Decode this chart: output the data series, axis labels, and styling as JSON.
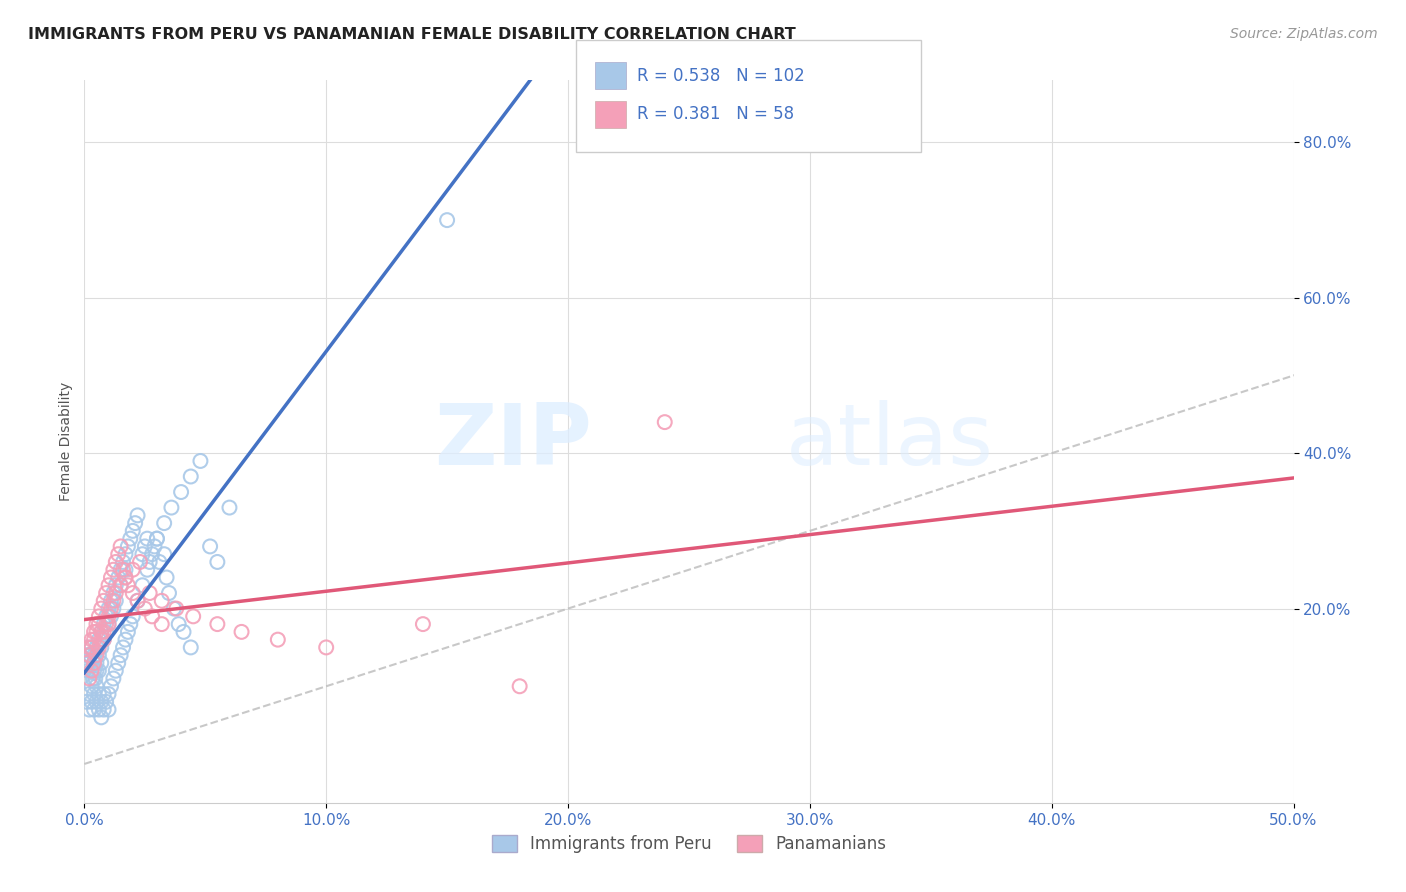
{
  "title": "IMMIGRANTS FROM PERU VS PANAMANIAN FEMALE DISABILITY CORRELATION CHART",
  "source": "Source: ZipAtlas.com",
  "ylabel": "Female Disability",
  "x_tick_labels": [
    "0.0%",
    "10.0%",
    "20.0%",
    "30.0%",
    "40.0%",
    "50.0%"
  ],
  "x_tick_vals": [
    0.0,
    0.1,
    0.2,
    0.3,
    0.4,
    0.5
  ],
  "y_tick_labels_right": [
    "20.0%",
    "40.0%",
    "60.0%",
    "80.0%"
  ],
  "y_tick_vals": [
    0.2,
    0.4,
    0.6,
    0.8
  ],
  "xlim": [
    0.0,
    0.5
  ],
  "ylim": [
    -0.05,
    0.88
  ],
  "legend_label_peru": "Immigrants from Peru",
  "legend_label_panama": "Panamanians",
  "R_peru": 0.538,
  "N_peru": 102,
  "R_panama": 0.381,
  "N_panama": 58,
  "color_blue": "#A8C8E8",
  "color_pink": "#F4A0B8",
  "color_blue_line": "#4472C4",
  "color_pink_line": "#E05878",
  "watermark_zip": "ZIP",
  "watermark_atlas": "atlas",
  "background_color": "#FFFFFF",
  "grid_color": "#DDDDDD",
  "peru_x": [
    0.0005,
    0.001,
    0.001,
    0.0015,
    0.002,
    0.002,
    0.0025,
    0.003,
    0.003,
    0.0035,
    0.004,
    0.004,
    0.004,
    0.0045,
    0.005,
    0.005,
    0.005,
    0.006,
    0.006,
    0.006,
    0.007,
    0.007,
    0.007,
    0.008,
    0.008,
    0.009,
    0.009,
    0.01,
    0.01,
    0.011,
    0.011,
    0.012,
    0.012,
    0.013,
    0.013,
    0.014,
    0.015,
    0.015,
    0.016,
    0.017,
    0.017,
    0.018,
    0.019,
    0.02,
    0.021,
    0.022,
    0.024,
    0.025,
    0.026,
    0.027,
    0.029,
    0.03,
    0.031,
    0.033,
    0.034,
    0.035,
    0.037,
    0.039,
    0.041,
    0.044,
    0.001,
    0.002,
    0.002,
    0.003,
    0.003,
    0.004,
    0.004,
    0.005,
    0.005,
    0.006,
    0.006,
    0.007,
    0.007,
    0.008,
    0.008,
    0.009,
    0.01,
    0.01,
    0.011,
    0.012,
    0.013,
    0.014,
    0.015,
    0.016,
    0.017,
    0.018,
    0.019,
    0.02,
    0.022,
    0.024,
    0.026,
    0.028,
    0.03,
    0.033,
    0.036,
    0.04,
    0.044,
    0.048,
    0.052,
    0.055,
    0.06,
    0.15
  ],
  "peru_y": [
    0.13,
    0.14,
    0.15,
    0.12,
    0.13,
    0.14,
    0.14,
    0.15,
    0.12,
    0.11,
    0.13,
    0.14,
    0.12,
    0.11,
    0.15,
    0.13,
    0.12,
    0.16,
    0.14,
    0.12,
    0.17,
    0.15,
    0.13,
    0.18,
    0.16,
    0.19,
    0.17,
    0.2,
    0.18,
    0.21,
    0.19,
    0.22,
    0.2,
    0.23,
    0.21,
    0.24,
    0.25,
    0.23,
    0.26,
    0.27,
    0.25,
    0.28,
    0.29,
    0.3,
    0.31,
    0.32,
    0.27,
    0.28,
    0.29,
    0.26,
    0.28,
    0.29,
    0.26,
    0.27,
    0.24,
    0.22,
    0.2,
    0.18,
    0.17,
    0.15,
    0.08,
    0.09,
    0.07,
    0.1,
    0.08,
    0.09,
    0.07,
    0.1,
    0.08,
    0.09,
    0.07,
    0.08,
    0.06,
    0.09,
    0.07,
    0.08,
    0.09,
    0.07,
    0.1,
    0.11,
    0.12,
    0.13,
    0.14,
    0.15,
    0.16,
    0.17,
    0.18,
    0.19,
    0.21,
    0.23,
    0.25,
    0.27,
    0.29,
    0.31,
    0.33,
    0.35,
    0.37,
    0.39,
    0.28,
    0.26,
    0.33,
    0.7
  ],
  "panama_x": [
    0.001,
    0.002,
    0.002,
    0.003,
    0.003,
    0.004,
    0.004,
    0.005,
    0.005,
    0.006,
    0.006,
    0.007,
    0.007,
    0.008,
    0.008,
    0.009,
    0.01,
    0.01,
    0.011,
    0.012,
    0.013,
    0.014,
    0.015,
    0.016,
    0.017,
    0.018,
    0.02,
    0.022,
    0.025,
    0.028,
    0.032,
    0.002,
    0.003,
    0.004,
    0.005,
    0.006,
    0.007,
    0.008,
    0.009,
    0.01,
    0.011,
    0.012,
    0.013,
    0.015,
    0.017,
    0.02,
    0.023,
    0.027,
    0.032,
    0.038,
    0.045,
    0.055,
    0.065,
    0.08,
    0.1,
    0.14,
    0.18,
    0.24
  ],
  "panama_y": [
    0.13,
    0.15,
    0.14,
    0.16,
    0.15,
    0.17,
    0.16,
    0.18,
    0.17,
    0.19,
    0.18,
    0.2,
    0.17,
    0.21,
    0.16,
    0.22,
    0.23,
    0.18,
    0.24,
    0.25,
    0.26,
    0.27,
    0.28,
    0.25,
    0.24,
    0.23,
    0.22,
    0.21,
    0.2,
    0.19,
    0.18,
    0.11,
    0.12,
    0.13,
    0.14,
    0.15,
    0.16,
    0.17,
    0.18,
    0.19,
    0.2,
    0.21,
    0.22,
    0.23,
    0.24,
    0.25,
    0.26,
    0.22,
    0.21,
    0.2,
    0.19,
    0.18,
    0.17,
    0.16,
    0.15,
    0.18,
    0.1,
    0.44
  ]
}
